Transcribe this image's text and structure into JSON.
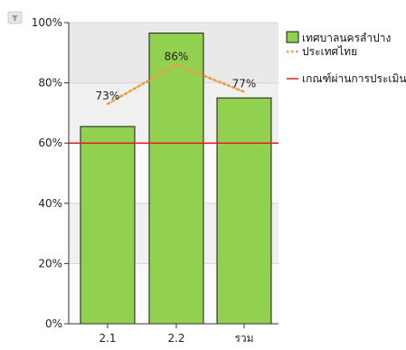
{
  "chart_data": {
    "type": "bar",
    "categories": [
      "2.1",
      "2.2",
      "รวม"
    ],
    "series": [
      {
        "name": "เทศบาลนครลำปาง",
        "type": "bar",
        "values": [
          65.5,
          96.5,
          75
        ],
        "color": "#92D050"
      },
      {
        "name": "ประเทศไทย",
        "type": "line",
        "style": "dotted",
        "values": [
          73,
          86,
          77
        ],
        "labels": [
          "73%",
          "86%",
          "77%"
        ],
        "color": "#E8A040"
      },
      {
        "name": "เกณฑ์ผ่านการประเมิน",
        "type": "reference-line",
        "value": 60,
        "color": "#E02020"
      }
    ],
    "ylim": [
      0,
      100
    ],
    "yticks": [
      0,
      20,
      40,
      60,
      80,
      100
    ],
    "ytick_labels": [
      "0%",
      "20%",
      "40%",
      "60%",
      "80%",
      "100%"
    ],
    "grid": true,
    "legend_position": "right",
    "title": "",
    "xlabel": "",
    "ylabel": ""
  },
  "ui": {
    "filter_icon": "filter-icon"
  }
}
